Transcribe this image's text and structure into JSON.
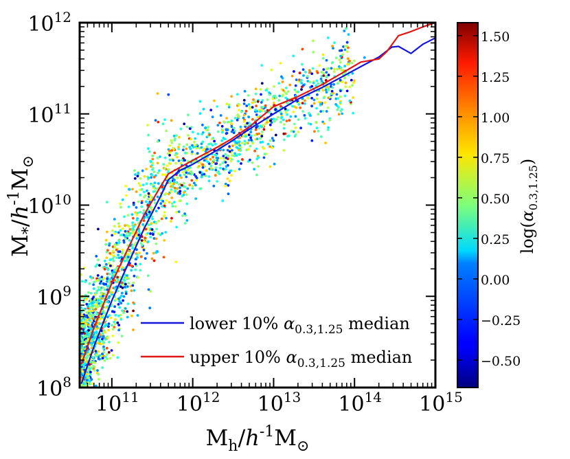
{
  "chart_data": {
    "type": "scatter",
    "xlabel": "M_h/h^{-1}M_⊙",
    "ylabel": "M_*/h^{-1}M_⊙",
    "xscale": "log",
    "yscale": "log",
    "xlim": [
      40000000000.0,
      1000000000000000.0
    ],
    "ylim": [
      100000000.0,
      1000000000000.0
    ],
    "x_tick_labels": [
      {
        "base": "10",
        "exp": "11",
        "value": 100000000000.0
      },
      {
        "base": "10",
        "exp": "12",
        "value": 1000000000000.0
      },
      {
        "base": "10",
        "exp": "13",
        "value": 10000000000000.0
      },
      {
        "base": "10",
        "exp": "14",
        "value": 100000000000000.0
      },
      {
        "base": "10",
        "exp": "15",
        "value": 1000000000000000.0
      }
    ],
    "y_tick_labels": [
      {
        "base": "10",
        "exp": "8",
        "value": 100000000.0
      },
      {
        "base": "10",
        "exp": "9",
        "value": 1000000000.0
      },
      {
        "base": "10",
        "exp": "10",
        "value": 10000000000.0
      },
      {
        "base": "10",
        "exp": "11",
        "value": 100000000000.0
      },
      {
        "base": "10",
        "exp": "12",
        "value": 1000000000000.0
      }
    ],
    "grid": false,
    "legend": {
      "placement": "lower-right",
      "entries": [
        {
          "label_pre": "lower 10% ",
          "label_math": "α",
          "label_sub": "0.3,1.25",
          "label_post": " median",
          "color": "#1515e0"
        },
        {
          "label_pre": "upper 10% ",
          "label_math": "α",
          "label_sub": "0.3,1.25",
          "label_post": " median",
          "color": "#e01515"
        }
      ]
    },
    "colorbar": {
      "label": "log(α_{0.3,1.25})",
      "range": [
        -0.67,
        1.58
      ],
      "colormap": "jet",
      "tick_labels": [
        "−0.50",
        "−0.25",
        "0.00",
        "0.25",
        "0.50",
        "0.75",
        "1.00",
        "1.25",
        "1.50"
      ],
      "tick_values": [
        -0.5,
        -0.25,
        0.0,
        0.25,
        0.5,
        0.75,
        1.0,
        1.25,
        1.5
      ]
    },
    "series": [
      {
        "name": "lower 10% α_{0.3,1.25} median",
        "color": "#1515e0",
        "x": [
          42000000000.0,
          60000000000.0,
          100000000000.0,
          160000000000.0,
          250000000000.0,
          400000000000.0,
          500000000000.0,
          700000000000.0,
          1000000000000.0,
          2000000000000.0,
          3000000000000.0,
          5000000000000.0,
          10000000000000.0,
          20000000000000.0,
          40000000000000.0,
          70000000000000.0,
          120000000000000.0,
          200000000000000.0,
          290000000000000.0,
          350000000000000.0,
          500000000000000.0,
          700000000000000.0,
          1000000000000000.0
        ],
        "y": [
          110000000.0,
          280000000.0,
          900000000.0,
          2300000000.0,
          5500000000.0,
          12500000000.0,
          19000000000.0,
          24000000000.0,
          28000000000.0,
          40000000000.0,
          50000000000.0,
          68000000000.0,
          100000000000.0,
          145000000000.0,
          195000000000.0,
          255000000000.0,
          330000000000.0,
          420000000000.0,
          540000000000.0,
          550000000000.0,
          460000000000.0,
          580000000000.0,
          680000000000.0
        ]
      },
      {
        "name": "upper 10% α_{0.3,1.25} median",
        "color": "#e01515",
        "x": [
          42000000000.0,
          60000000000.0,
          100000000000.0,
          160000000000.0,
          250000000000.0,
          400000000000.0,
          500000000000.0,
          700000000000.0,
          1000000000000.0,
          2000000000000.0,
          3000000000000.0,
          5000000000000.0,
          10000000000000.0,
          20000000000000.0,
          40000000000000.0,
          70000000000000.0,
          120000000000000.0,
          200000000000000.0,
          250000000000000.0,
          350000000000000.0,
          500000000000000.0,
          700000000000000.0,
          1000000000000000.0
        ],
        "y": [
          180000000.0,
          450000000.0,
          1400000000.0,
          3400000000.0,
          7800000000.0,
          16000000000.0,
          22000000000.0,
          26000000000.0,
          31000000000.0,
          43000000000.0,
          53000000000.0,
          72000000000.0,
          120000000000.0,
          155000000000.0,
          210000000000.0,
          280000000000.0,
          370000000000.0,
          400000000000.0,
          480000000000.0,
          720000000000.0,
          800000000000.0,
          900000000000.0,
          1000000000000.0
        ]
      }
    ]
  }
}
